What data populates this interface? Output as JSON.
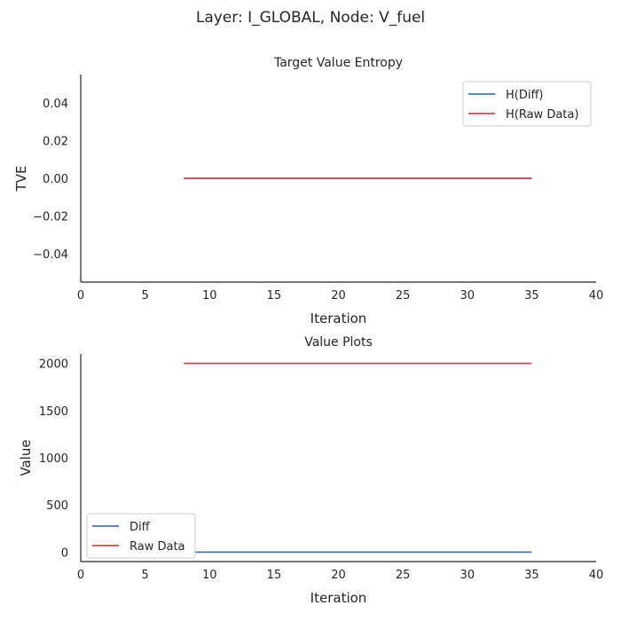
{
  "figure_title": "Layer: I_GLOBAL, Node: V_fuel",
  "colors": {
    "series1": "#4c72b0",
    "series2": "#c44e52",
    "axis": "#262626"
  },
  "chart_data": [
    {
      "type": "line",
      "title": "Target Value Entropy",
      "xlabel": "Iteration",
      "ylabel": "TVE",
      "xlim": [
        0,
        40
      ],
      "ylim": [
        -0.055,
        0.055
      ],
      "xticks": [
        0,
        5,
        10,
        15,
        20,
        25,
        30,
        35,
        40
      ],
      "yticks": [
        -0.04,
        -0.02,
        0.0,
        0.02,
        0.04
      ],
      "ytick_labels": [
        "−0.04",
        "−0.02",
        "0.00",
        "0.02",
        "0.04"
      ],
      "grid": false,
      "legend_position": "upper right",
      "series": [
        {
          "name": "H(Diff)",
          "color": "#4c72b0",
          "x": [
            8,
            35
          ],
          "y": [
            0,
            0
          ]
        },
        {
          "name": "H(Raw Data)",
          "color": "#c44e52",
          "x": [
            8,
            35
          ],
          "y": [
            0,
            0
          ]
        }
      ]
    },
    {
      "type": "line",
      "title": "Value Plots",
      "xlabel": "Iteration",
      "ylabel": "Value",
      "xlim": [
        0,
        40
      ],
      "ylim": [
        -100,
        2100
      ],
      "xticks": [
        0,
        5,
        10,
        15,
        20,
        25,
        30,
        35,
        40
      ],
      "yticks": [
        0,
        500,
        1000,
        1500,
        2000
      ],
      "ytick_labels": [
        "0",
        "500",
        "1000",
        "1500",
        "2000"
      ],
      "grid": false,
      "legend_position": "lower left",
      "series": [
        {
          "name": "Diff",
          "color": "#4c72b0",
          "x": [
            8,
            35
          ],
          "y": [
            0,
            0
          ]
        },
        {
          "name": "Raw Data",
          "color": "#c44e52",
          "x": [
            8,
            35
          ],
          "y": [
            2000,
            2000
          ]
        }
      ]
    }
  ]
}
